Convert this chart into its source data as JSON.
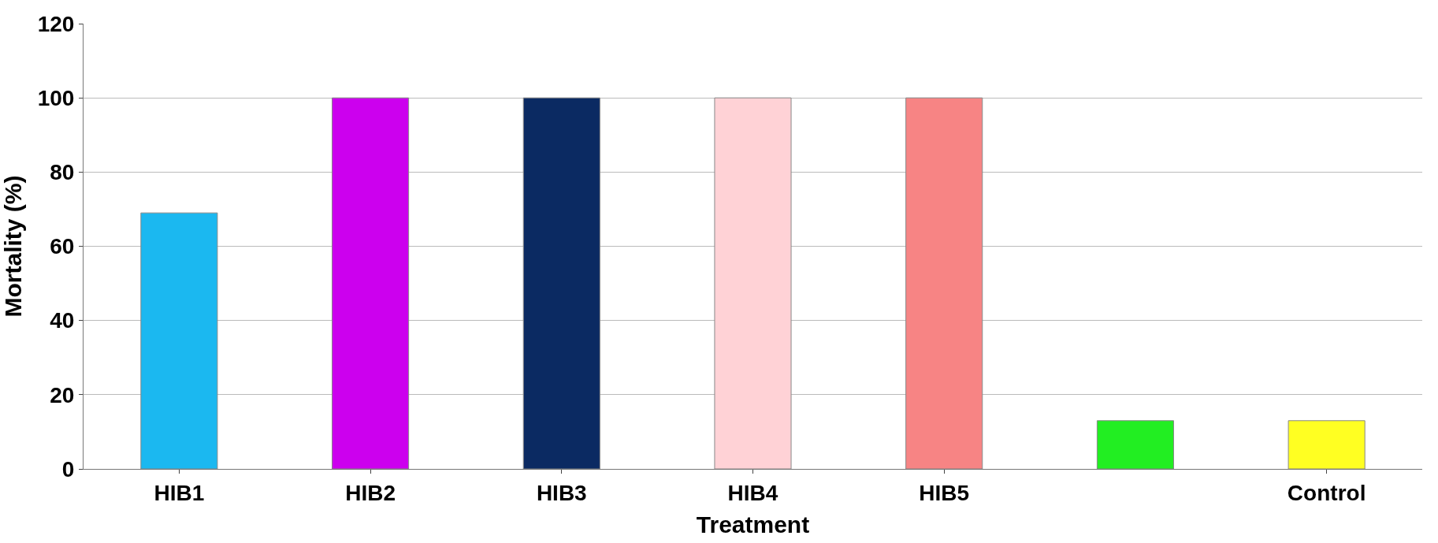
{
  "chart_data": {
    "type": "bar",
    "xlabel": "Treatment",
    "ylabel": "Mortality (%)",
    "categories": [
      "HIB1",
      "HIB2",
      "HIB3",
      "HIB4",
      "HIB5",
      null,
      "Control"
    ],
    "values": [
      69,
      100,
      100,
      100,
      100,
      13,
      13
    ],
    "colors": [
      "#1bb8f0",
      "#cc00ee",
      "#0b2a62",
      "#ffd2d6",
      "#f78484",
      "#22ee22",
      "#ffff22"
    ],
    "ylim": [
      0,
      120
    ],
    "yticks": [
      0,
      20,
      40,
      60,
      80,
      100,
      120
    ],
    "grid": "y",
    "legend": false
  }
}
